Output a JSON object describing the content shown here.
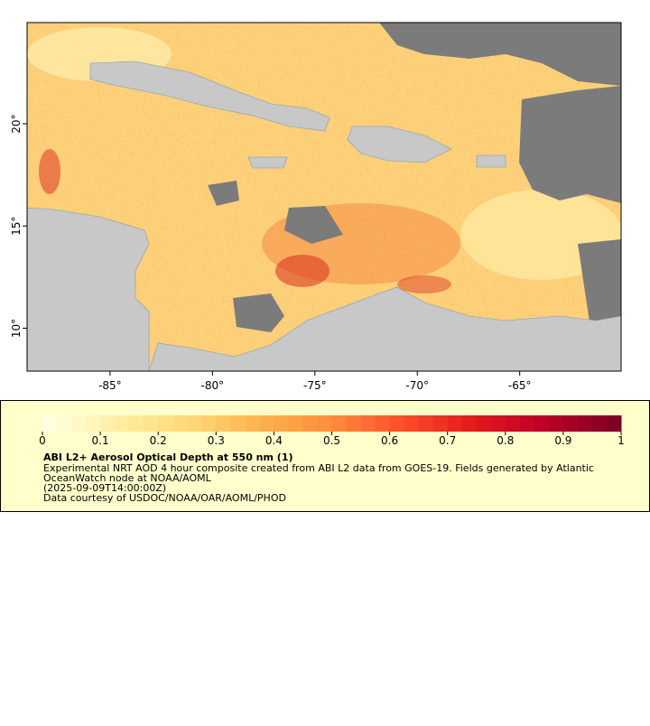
{
  "map": {
    "xlim": [
      -89.05,
      -60.05
    ],
    "ylim": [
      7.9,
      24.95
    ],
    "xticks": [
      {
        "value": -85,
        "label": "-85°"
      },
      {
        "value": -80,
        "label": "-80°"
      },
      {
        "value": -75,
        "label": "-75°"
      },
      {
        "value": -70,
        "label": "-70°"
      },
      {
        "value": -65,
        "label": "-65°"
      }
    ],
    "yticks": [
      {
        "value": 10,
        "label": "10°"
      },
      {
        "value": 15,
        "label": "15°"
      },
      {
        "value": 20,
        "label": "20°"
      }
    ]
  },
  "colorbar": {
    "lim": [
      0,
      1
    ],
    "ticks": [
      0,
      0.1,
      0.2,
      0.3,
      0.4,
      0.5,
      0.6,
      0.7,
      0.8,
      0.9,
      1
    ],
    "colormap": [
      "#ffffe0",
      "#ffeda0",
      "#fed976",
      "#feb24c",
      "#fd8d3c",
      "#fc4e2a",
      "#e31a1c",
      "#bd0026",
      "#800026"
    ]
  },
  "legend": {
    "title": "ABI L2+ Aerosol Optical Depth at 550 nm (1)",
    "lines": [
      "Experimental NRT AOD 4 hour composite created from ABI L2 data from GOES-19. Fields generated by Atlantic",
      "OceanWatch node at NOAA/AOML",
      "(2025-09-09T14:00:00Z)",
      "Data courtesy of USDOC/NOAA/OAR/AOML/PHOD"
    ]
  }
}
